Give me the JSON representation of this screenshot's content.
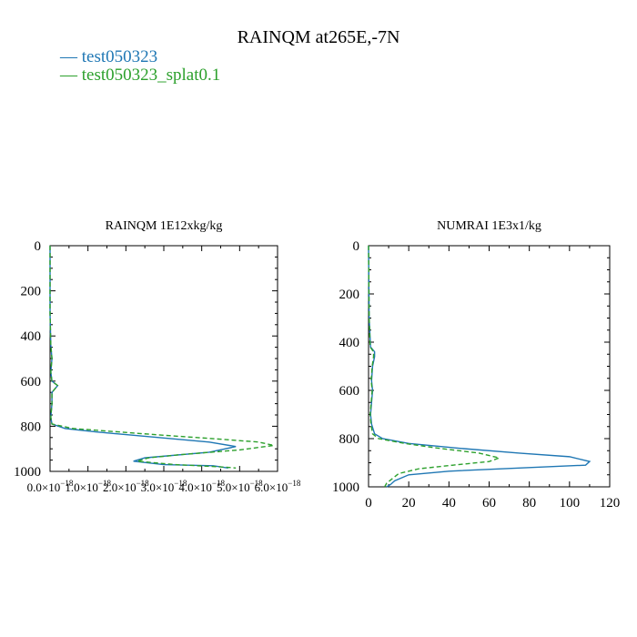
{
  "title": "RAINQM at265E,-7N",
  "legend": [
    {
      "label": "test050323",
      "color": "#1f77b4",
      "style": "solid"
    },
    {
      "label": "test050323_splat0.1",
      "color": "#2ca02c",
      "style": "dashed"
    }
  ],
  "chart_data": [
    {
      "type": "line",
      "title": "RAINQM  1E12xkg/kg",
      "xlim": [
        0,
        6e-18
      ],
      "ylim": [
        1000,
        0
      ],
      "y_inverted": true,
      "xticks": [
        0,
        1e-18,
        2e-18,
        3e-18,
        4e-18,
        5e-18,
        6e-18
      ],
      "xtick_labels": [
        "0.0×10",
        "1.0×10",
        "2.0×10",
        "3.0×10",
        "4.0×10",
        "5.0×10",
        "6.0×10"
      ],
      "xtick_exponent": "−18",
      "yticks": [
        0,
        200,
        400,
        600,
        800,
        1000
      ],
      "series": [
        {
          "name": "test050323",
          "points": [
            [
              0,
              0
            ],
            [
              0,
              300
            ],
            [
              2e-20,
              440
            ],
            [
              5e-20,
              500
            ],
            [
              2e-20,
              560
            ],
            [
              5e-20,
              600
            ],
            [
              2e-19,
              620
            ],
            [
              5e-20,
              650
            ],
            [
              5e-20,
              700
            ],
            [
              2e-20,
              760
            ],
            [
              5e-20,
              790
            ],
            [
              4e-19,
              810
            ],
            [
              1.2e-18,
              825
            ],
            [
              2.2e-18,
              840
            ],
            [
              3.2e-18,
              855
            ],
            [
              4.2e-18,
              870
            ],
            [
              4.9e-18,
              890
            ],
            [
              4.2e-18,
              915
            ],
            [
              2.5e-18,
              940
            ],
            [
              2.2e-18,
              955
            ],
            [
              3e-18,
              970
            ],
            [
              4.3e-18,
              975
            ],
            [
              4.7e-18,
              985
            ]
          ]
        },
        {
          "name": "test050323_splat0.1",
          "points": [
            [
              0,
              0
            ],
            [
              0,
              300
            ],
            [
              2e-20,
              440
            ],
            [
              5e-20,
              500
            ],
            [
              2e-20,
              560
            ],
            [
              5e-20,
              600
            ],
            [
              2e-19,
              620
            ],
            [
              5e-20,
              650
            ],
            [
              5e-20,
              700
            ],
            [
              2e-20,
              760
            ],
            [
              5e-20,
              790
            ],
            [
              6e-19,
              810
            ],
            [
              1.8e-18,
              825
            ],
            [
              3e-18,
              840
            ],
            [
              4.3e-18,
              855
            ],
            [
              5.5e-18,
              870
            ],
            [
              5.9e-18,
              885
            ],
            [
              5e-18,
              905
            ],
            [
              3.5e-18,
              925
            ],
            [
              2.6e-18,
              940
            ],
            [
              2.3e-18,
              955
            ],
            [
              3.3e-18,
              970
            ],
            [
              4.5e-18,
              980
            ],
            [
              4.9e-18,
              985
            ]
          ]
        }
      ]
    },
    {
      "type": "line",
      "title": "NUMRAI  1E3x1/kg",
      "xlim": [
        0,
        120
      ],
      "ylim": [
        1000,
        0
      ],
      "y_inverted": true,
      "xticks": [
        0,
        20,
        40,
        60,
        80,
        100,
        120
      ],
      "yticks": [
        0,
        200,
        400,
        600,
        800,
        1000
      ],
      "series": [
        {
          "name": "test050323",
          "points": [
            [
              0,
              0
            ],
            [
              0.3,
              300
            ],
            [
              1,
              420
            ],
            [
              3,
              440
            ],
            [
              3,
              460
            ],
            [
              2,
              500
            ],
            [
              1.5,
              560
            ],
            [
              2,
              600
            ],
            [
              1.5,
              650
            ],
            [
              1,
              700
            ],
            [
              1.5,
              740
            ],
            [
              3,
              780
            ],
            [
              7,
              800
            ],
            [
              20,
              820
            ],
            [
              45,
              840
            ],
            [
              75,
              860
            ],
            [
              100,
              875
            ],
            [
              110,
              895
            ],
            [
              108,
              910
            ],
            [
              80,
              920
            ],
            [
              40,
              935
            ],
            [
              20,
              950
            ],
            [
              13,
              975
            ],
            [
              11,
              990
            ],
            [
              9,
              1000
            ]
          ]
        },
        {
          "name": "test050323_splat0.1",
          "points": [
            [
              0,
              0
            ],
            [
              0.3,
              300
            ],
            [
              0.8,
              420
            ],
            [
              2.5,
              440
            ],
            [
              2.5,
              460
            ],
            [
              1.8,
              500
            ],
            [
              1.3,
              560
            ],
            [
              1.8,
              600
            ],
            [
              1.3,
              650
            ],
            [
              0.8,
              700
            ],
            [
              1.2,
              740
            ],
            [
              2,
              780
            ],
            [
              5,
              800
            ],
            [
              18,
              820
            ],
            [
              35,
              840
            ],
            [
              55,
              860
            ],
            [
              65,
              880
            ],
            [
              60,
              895
            ],
            [
              42,
              910
            ],
            [
              25,
              925
            ],
            [
              15,
              945
            ],
            [
              12,
              965
            ],
            [
              9,
              985
            ],
            [
              8,
              1000
            ]
          ]
        }
      ]
    }
  ]
}
